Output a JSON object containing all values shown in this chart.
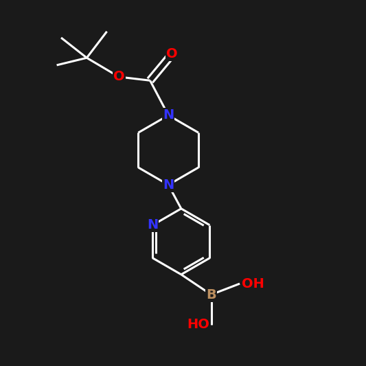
{
  "bg_color": "#1a1a1a",
  "line_color": "#ffffff",
  "N_color": "#3333ff",
  "O_color": "#ff0000",
  "B_color": "#bc8f5f",
  "bond_width": 2.2,
  "font_size": 14,
  "xlim": [
    0,
    10
  ],
  "ylim": [
    0,
    10
  ]
}
